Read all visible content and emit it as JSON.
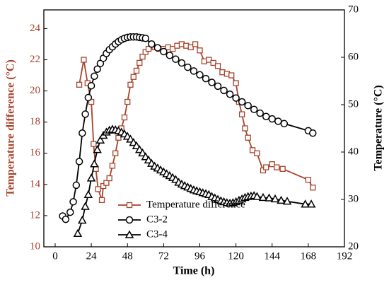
{
  "chart_data": {
    "type": "line",
    "xlabel": "Time (h)",
    "ylabel": "Temperature difference (°C)",
    "y2label": "Temperature (°C)",
    "ylabel_color": "#a8432b",
    "xlim": [
      -7.5,
      192
    ],
    "xticks": [
      0,
      24,
      48,
      72,
      96,
      120,
      144,
      168,
      192
    ],
    "ylim": [
      10,
      25.2
    ],
    "yticks": [
      10,
      12,
      14,
      16,
      18,
      20,
      22,
      24
    ],
    "y2lim": [
      20,
      70
    ],
    "y2ticks": [
      20,
      30,
      40,
      50,
      60,
      70
    ],
    "legend": "lower center",
    "series": [
      {
        "name": "Temperature difference",
        "color": "#a8432b",
        "marker": "square",
        "axis": "y",
        "x": [
          16,
          19,
          21.5,
          24,
          25.5,
          27,
          28.5,
          31,
          32,
          34,
          36,
          38,
          40,
          42,
          44,
          46,
          48,
          50,
          52,
          54,
          56,
          58,
          60,
          62,
          66,
          69,
          72,
          75,
          78,
          81,
          84,
          87,
          90,
          93,
          96,
          99,
          102,
          105,
          108,
          111,
          114,
          117,
          120,
          122,
          124,
          126,
          128,
          131,
          134,
          138,
          140,
          144,
          147,
          151,
          168,
          171
        ],
        "values": [
          20.4,
          22.0,
          20.5,
          19.3,
          16.6,
          15.0,
          13.7,
          13.0,
          13.9,
          14.1,
          14.4,
          15.2,
          16.0,
          17.0,
          17.6,
          18.3,
          19.3,
          20.4,
          20.9,
          21.3,
          21.8,
          22.2,
          22.5,
          22.7,
          22.8,
          22.7,
          22.7,
          22.8,
          22.7,
          22.9,
          23.0,
          22.9,
          22.8,
          23.0,
          22.6,
          21.9,
          22.0,
          21.8,
          21.6,
          21.2,
          21.1,
          21.0,
          20.5,
          19.3,
          18.5,
          17.6,
          17.0,
          16.2,
          16.0,
          14.9,
          15.1,
          15.3,
          15.1,
          15.0,
          14.3,
          13.8
        ]
      },
      {
        "name": "C3-2",
        "color": "#000000",
        "marker": "circle",
        "axis": "y2",
        "x": [
          5,
          7,
          10,
          12,
          14,
          16,
          18,
          20,
          22,
          24,
          26,
          28,
          30,
          32,
          34,
          36,
          38,
          40,
          42,
          44,
          46,
          48,
          50,
          52,
          54,
          56,
          58,
          60,
          64,
          68,
          72,
          76,
          80,
          84,
          88,
          92,
          96,
          100,
          104,
          108,
          112,
          116,
          120,
          124,
          128,
          132,
          136,
          140,
          144,
          148,
          152,
          168,
          171
        ],
        "values": [
          26.5,
          25.8,
          27.3,
          29.5,
          33,
          38,
          44,
          48,
          51.5,
          54,
          56,
          57.5,
          58.7,
          59.8,
          60.8,
          61.6,
          62.2,
          62.8,
          63.3,
          63.7,
          64,
          64.2,
          64.3,
          64.3,
          64.3,
          64.2,
          64.1,
          64,
          62.8,
          62,
          61.2,
          60.4,
          59.6,
          58.8,
          57.9,
          57.1,
          56.3,
          55.5,
          54.7,
          53.9,
          53.0,
          52.2,
          51.4,
          50.6,
          49.8,
          49.0,
          48.2,
          47.5,
          47,
          46.5,
          46,
          44.5,
          44
        ]
      },
      {
        "name": "C3-4",
        "color": "#000000",
        "marker": "triangle",
        "axis": "y2",
        "x": [
          15,
          18,
          20,
          22,
          24,
          26,
          28,
          30,
          32,
          34,
          36,
          38,
          40,
          42,
          44,
          46,
          48,
          50,
          52,
          54,
          56,
          58,
          60,
          62,
          64,
          66,
          68,
          70,
          72,
          74,
          76,
          78,
          80,
          82,
          84,
          86,
          88,
          90,
          92,
          94,
          96,
          98,
          100,
          102,
          104,
          106,
          108,
          110,
          112,
          114,
          116,
          118,
          120,
          122,
          124,
          126,
          128,
          130,
          132,
          134,
          138,
          142,
          146,
          150,
          154,
          166,
          170
        ],
        "values": [
          22.8,
          25.6,
          28.5,
          31,
          34.5,
          37.5,
          40.5,
          42.5,
          43.5,
          44.2,
          44.6,
          44.8,
          44.7,
          44.5,
          44.2,
          43.8,
          43.3,
          42.7,
          42,
          41.3,
          40.5,
          39.8,
          39,
          38.3,
          37.6,
          37,
          36.6,
          36.2,
          35.8,
          35.4,
          35,
          34.6,
          34.2,
          33.6,
          33.2,
          32.9,
          32.6,
          32.3,
          32.0,
          31.8,
          31.6,
          31.4,
          31.2,
          31.0,
          30.6,
          30.3,
          30.0,
          29.7,
          29.5,
          29.3,
          29.2,
          29.3,
          29.5,
          29.8,
          30.1,
          30.4,
          30.6,
          30.7,
          30.8,
          30.6,
          30.4,
          30.3,
          30.1,
          29.8,
          29.6,
          29.0,
          29.0
        ]
      }
    ]
  }
}
